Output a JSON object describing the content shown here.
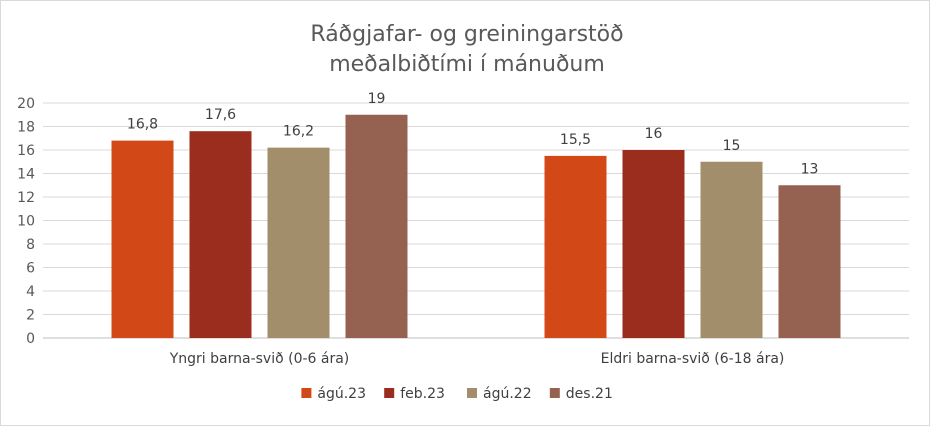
{
  "chart_data": {
    "type": "bar",
    "title": "Ráðgjafar- og greiningarstöð",
    "subtitle": "meðalbiðtími í mánuðum",
    "categories": [
      "Yngri barna-svið (0-6 ára)",
      "Eldri barna-svið (6-18 ára)"
    ],
    "series": [
      {
        "name": "ágú.23",
        "color": "#D34817",
        "values": [
          16.8,
          15.5
        ],
        "labels": [
          "16,8",
          "15,5"
        ]
      },
      {
        "name": "feb.23",
        "color": "#9B2D1F",
        "values": [
          17.6,
          16
        ],
        "labels": [
          "17,6",
          "16"
        ]
      },
      {
        "name": "ágú.22",
        "color": "#A28E6A",
        "values": [
          16.2,
          15
        ],
        "labels": [
          "16,2",
          "15"
        ]
      },
      {
        "name": "des.21",
        "color": "#956251",
        "values": [
          19,
          13
        ],
        "labels": [
          "19",
          "13"
        ]
      }
    ],
    "ylim": [
      0,
      20
    ],
    "yticks": [
      0,
      2,
      4,
      6,
      8,
      10,
      12,
      14,
      16,
      18,
      20
    ],
    "grid": true,
    "legend": "bottom"
  }
}
